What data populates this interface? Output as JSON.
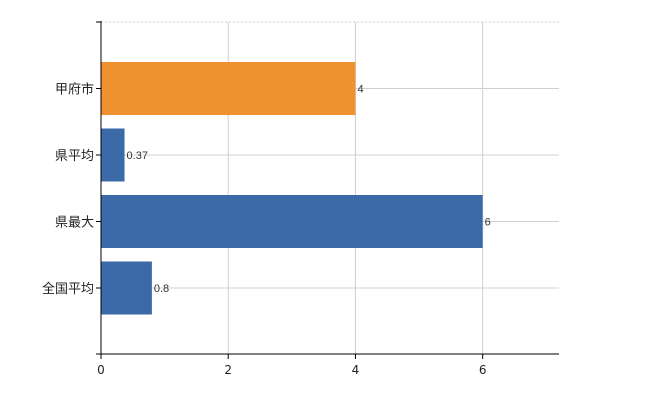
{
  "chart_data": {
    "type": "bar",
    "orientation": "horizontal",
    "categories": [
      "甲府市",
      "県平均",
      "県最大",
      "全国平均"
    ],
    "values": [
      4,
      0.37,
      6,
      0.8
    ],
    "data_labels": [
      "4",
      "0.37",
      "6",
      "0.8"
    ],
    "bar_colors": [
      "#f0912f",
      "#3c6aa8",
      "#3c6aa8",
      "#3c6aa8"
    ],
    "highlight_color": "#f0912f",
    "base_color": "#3c6aa8",
    "xlim": [
      0,
      7.2
    ],
    "xticks": [
      0,
      2,
      4,
      6
    ],
    "xtick_labels": [
      "0",
      "2",
      "4",
      "6"
    ],
    "grid": true,
    "title": "",
    "xlabel": "",
    "ylabel": ""
  }
}
